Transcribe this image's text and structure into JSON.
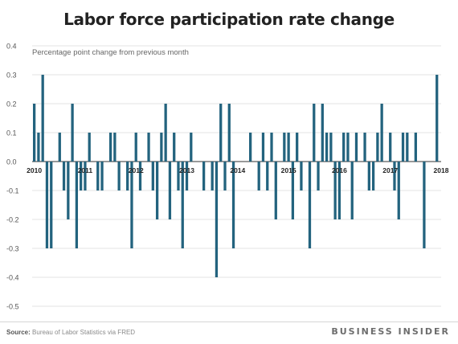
{
  "chart_data": {
    "type": "bar",
    "title": "Labor force participation rate change",
    "subtitle": "Percentage point change from previous month",
    "ylim": [
      -0.5,
      0.4
    ],
    "yticks": [
      -0.5,
      -0.4,
      -0.3,
      -0.2,
      -0.1,
      0.0,
      0.1,
      0.2,
      0.3,
      0.4
    ],
    "ytick_labels": [
      "-0.5",
      "-0.4",
      "-0.3",
      "-0.2",
      "-0.1",
      "0.0",
      "0.1",
      "0.2",
      "0.3",
      "0.4"
    ],
    "x_start": "2010-01",
    "x_end": "2018-01",
    "year_labels": [
      "2010",
      "2011",
      "2012",
      "2013",
      "2014",
      "2015",
      "2016",
      "2017",
      "2018"
    ],
    "color": "#23637e",
    "grid": true,
    "values": [
      0.2,
      0.1,
      0.3,
      -0.3,
      -0.3,
      0.0,
      0.1,
      -0.1,
      -0.2,
      0.2,
      -0.3,
      -0.1,
      -0.1,
      0.1,
      0.0,
      -0.1,
      -0.1,
      0.0,
      0.1,
      0.1,
      -0.1,
      0.0,
      -0.1,
      -0.3,
      0.1,
      -0.1,
      0.0,
      0.1,
      -0.1,
      -0.2,
      0.1,
      0.2,
      -0.2,
      0.1,
      -0.1,
      -0.3,
      -0.1,
      0.1,
      0.0,
      0.0,
      -0.1,
      0.0,
      -0.1,
      -0.4,
      0.2,
      -0.1,
      0.2,
      -0.3,
      0.0,
      0.0,
      0.0,
      0.1,
      0.0,
      -0.1,
      0.1,
      -0.1,
      0.1,
      -0.2,
      0.0,
      0.1,
      0.1,
      -0.2,
      0.1,
      -0.1,
      0.0,
      -0.3,
      0.2,
      -0.1,
      0.2,
      0.1,
      0.1,
      -0.2,
      -0.2,
      0.1,
      0.1,
      -0.2,
      0.1,
      0.0,
      0.1,
      -0.1,
      -0.1,
      0.1,
      0.2,
      0.0,
      0.1,
      -0.1,
      -0.2,
      0.1,
      0.1,
      0.0,
      0.1,
      0.0,
      -0.3,
      0.0,
      0.0,
      0.3
    ]
  },
  "footer": {
    "source_label": "Source:",
    "source_text": "Bureau of Labor Statistics via FRED",
    "brand": "BUSINESS INSIDER"
  }
}
